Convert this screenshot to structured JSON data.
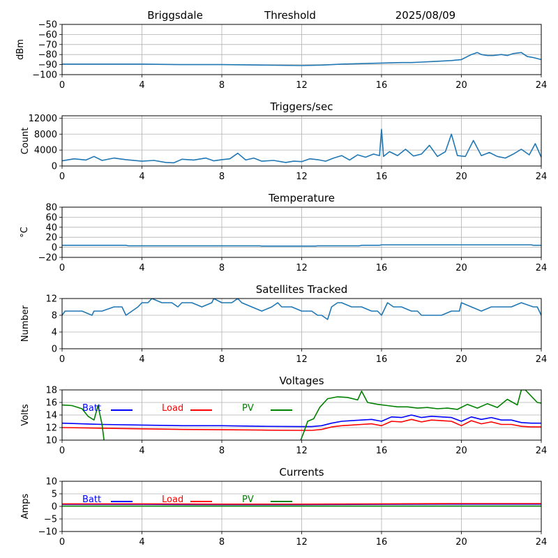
{
  "header": {
    "station": "Briggsdale",
    "label": "Threshold",
    "date": "2025/08/09"
  },
  "x_ticks": [
    0,
    4,
    8,
    12,
    16,
    20,
    24
  ],
  "chart_data": [
    {
      "id": "threshold",
      "type": "line",
      "title": "",
      "ylabel": "dBm",
      "ylim": [
        -100,
        -50
      ],
      "yticks": [
        -100,
        -90,
        -80,
        -70,
        -60,
        -50
      ],
      "xlim": [
        0,
        24
      ],
      "grid": true,
      "series": [
        {
          "color": "#1f77b4",
          "x": [
            0,
            2,
            4,
            6,
            8,
            10,
            12,
            13,
            14,
            15,
            16,
            17,
            17.5,
            18,
            18.5,
            19,
            19.5,
            20,
            20.5,
            20.8,
            21,
            21.3,
            21.6,
            22,
            22.3,
            22.6,
            23,
            23.3,
            23.6,
            24
          ],
          "y": [
            -89.5,
            -89.5,
            -89.5,
            -90,
            -90,
            -90.5,
            -91,
            -90.5,
            -89.5,
            -89,
            -88.5,
            -88,
            -88,
            -87.5,
            -87,
            -86.5,
            -86,
            -85,
            -80,
            -78,
            -80,
            -81,
            -81,
            -80,
            -81,
            -79,
            -78,
            -82,
            -83,
            -85
          ]
        }
      ]
    },
    {
      "id": "triggers",
      "type": "line",
      "title": "Triggers/sec",
      "ylabel": "Count",
      "ylim": [
        0,
        12600
      ],
      "yticks": [
        0,
        4000,
        8000,
        12000
      ],
      "xlim": [
        0,
        24
      ],
      "grid": true,
      "series": [
        {
          "color": "#1f77b4",
          "x": [
            0,
            0.6,
            1.2,
            1.6,
            2,
            2.6,
            3.2,
            4,
            4.6,
            5.2,
            5.6,
            6,
            6.6,
            7.2,
            7.6,
            8,
            8.4,
            8.8,
            9.2,
            9.6,
            10,
            10.6,
            11.2,
            11.6,
            12,
            12.4,
            12.8,
            13.2,
            13.6,
            14,
            14.4,
            14.8,
            15.2,
            15.6,
            15.9,
            16,
            16.1,
            16.4,
            16.8,
            17.2,
            17.6,
            18,
            18.4,
            18.8,
            19.2,
            19.5,
            19.8,
            20.2,
            20.6,
            21,
            21.4,
            21.8,
            22.2,
            22.6,
            23,
            23.4,
            23.7,
            24
          ],
          "y": [
            1300,
            1800,
            1500,
            2400,
            1400,
            2000,
            1600,
            1200,
            1400,
            900,
            800,
            1700,
            1500,
            2000,
            1300,
            1600,
            1800,
            3200,
            1500,
            2000,
            1200,
            1400,
            900,
            1200,
            1100,
            1800,
            1600,
            1200,
            2000,
            2600,
            1500,
            2800,
            2200,
            3000,
            2600,
            9200,
            2400,
            3600,
            2600,
            4200,
            2500,
            3000,
            5200,
            2400,
            3600,
            8000,
            2600,
            2400,
            6400,
            2600,
            3400,
            2400,
            2000,
            3000,
            4200,
            2800,
            5600,
            2200
          ]
        }
      ]
    },
    {
      "id": "temperature",
      "type": "line",
      "title": "Temperature",
      "ylabel": "°C",
      "ylim": [
        -20,
        80
      ],
      "yticks": [
        -20,
        0,
        20,
        40,
        60,
        80
      ],
      "xlim": [
        0,
        24
      ],
      "grid": true,
      "series": [
        {
          "color": "#1f77b4",
          "x": [
            0,
            3.2,
            3.3,
            9.9,
            10,
            12.7,
            12.8,
            14.9,
            15,
            15.9,
            16,
            23.5,
            23.6,
            24
          ],
          "y": [
            4,
            4,
            3,
            3,
            2.5,
            2.5,
            3,
            3,
            4,
            4,
            5,
            5,
            4,
            4
          ]
        }
      ]
    },
    {
      "id": "satellites",
      "type": "line",
      "title": "Satellites Tracked",
      "ylabel": "Number",
      "ylim": [
        0,
        12
      ],
      "yticks": [
        0,
        4,
        8,
        12
      ],
      "xlim": [
        0,
        24
      ],
      "grid": true,
      "series": [
        {
          "color": "#1f77b4",
          "x": [
            0,
            0.15,
            0.5,
            1.0,
            1.5,
            1.6,
            2.0,
            2.6,
            3.0,
            3.2,
            3.5,
            3.8,
            4.0,
            4.3,
            4.5,
            5.0,
            5.5,
            5.8,
            6.0,
            6.5,
            7.0,
            7.5,
            7.6,
            8.0,
            8.5,
            8.8,
            9.0,
            9.5,
            10.0,
            10.5,
            10.8,
            11.0,
            11.5,
            12.0,
            12.5,
            12.8,
            13.0,
            13.3,
            13.5,
            13.8,
            14.0,
            14.5,
            15.0,
            15.5,
            15.8,
            16.0,
            16.3,
            16.6,
            17.0,
            17.5,
            17.8,
            18.0,
            18.5,
            19.0,
            19.5,
            19.9,
            20.0,
            20.5,
            21.0,
            21.5,
            22.0,
            22.5,
            23.0,
            23.6,
            23.8,
            24
          ],
          "y": [
            8,
            9,
            9,
            9,
            8,
            9,
            9,
            10,
            10,
            8,
            9,
            10,
            11,
            11,
            12,
            11,
            11,
            10,
            11,
            11,
            10,
            11,
            12,
            11,
            11,
            12,
            11,
            10,
            9,
            10,
            11,
            10,
            10,
            9,
            9,
            8,
            8,
            7,
            10,
            11,
            11,
            10,
            10,
            9,
            9,
            8,
            11,
            10,
            10,
            9,
            9,
            8,
            8,
            8,
            9,
            9,
            11,
            10,
            9,
            10,
            10,
            10,
            11,
            10,
            10,
            8
          ]
        }
      ]
    },
    {
      "id": "voltages",
      "type": "line",
      "title": "Voltages",
      "ylabel": "Volts",
      "ylim": [
        10,
        18
      ],
      "yticks": [
        10,
        12,
        14,
        16,
        18
      ],
      "xlim": [
        0,
        24
      ],
      "grid": true,
      "legend": "top-left",
      "series": [
        {
          "name": "Batt",
          "color": "#0000ff",
          "x": [
            0,
            2,
            4,
            6,
            8,
            10,
            12,
            12.5,
            13,
            13.5,
            14,
            14.5,
            15,
            15.5,
            16,
            16.5,
            17,
            17.5,
            18,
            18.5,
            19,
            19.5,
            20,
            20.5,
            21,
            21.5,
            22,
            22.5,
            23,
            23.5,
            24
          ],
          "y": [
            12.7,
            12.5,
            12.4,
            12.3,
            12.3,
            12.2,
            12.15,
            12.15,
            12.3,
            12.7,
            13.0,
            13.1,
            13.2,
            13.3,
            13.0,
            13.7,
            13.6,
            14.0,
            13.6,
            13.8,
            13.7,
            13.6,
            13.0,
            13.7,
            13.3,
            13.6,
            13.2,
            13.2,
            12.8,
            12.7,
            12.7
          ]
        },
        {
          "name": "Load",
          "color": "#ff0000",
          "x": [
            0,
            2,
            4,
            6,
            8,
            10,
            12,
            12.5,
            13,
            13.5,
            14,
            14.5,
            15,
            15.5,
            16,
            16.5,
            17,
            17.5,
            18,
            18.5,
            19,
            19.5,
            20,
            20.5,
            21,
            21.5,
            22,
            22.5,
            23,
            23.5,
            24
          ],
          "y": [
            12.0,
            11.9,
            11.8,
            11.7,
            11.65,
            11.6,
            11.55,
            11.55,
            11.7,
            12.1,
            12.3,
            12.4,
            12.5,
            12.6,
            12.3,
            13.0,
            12.9,
            13.3,
            12.9,
            13.2,
            13.1,
            13.0,
            12.3,
            13.1,
            12.6,
            12.9,
            12.5,
            12.5,
            12.2,
            12.1,
            12.1
          ]
        },
        {
          "name": "PV",
          "color": "#008000",
          "x": [
            0,
            0.5,
            1.0,
            1.3,
            1.6,
            1.8,
            2.0,
            2.1,
            null,
            11.95,
            12.1,
            12.3,
            12.6,
            12.9,
            13.3,
            13.8,
            14.3,
            14.8,
            15.0,
            15.3,
            15.8,
            16.3,
            16.8,
            17.3,
            17.8,
            18.3,
            18.8,
            19.3,
            19.8,
            20.3,
            20.8,
            21.3,
            21.8,
            22.3,
            22.8,
            23.0,
            23.2,
            23.5,
            23.8,
            24
          ],
          "y": [
            15.6,
            15.5,
            15.0,
            13.8,
            13.2,
            15.5,
            12.5,
            10,
            null,
            10,
            11.2,
            13.0,
            13.4,
            15.2,
            16.6,
            16.9,
            16.8,
            16.4,
            17.8,
            16.0,
            15.7,
            15.5,
            15.3,
            15.3,
            15.1,
            15.2,
            15.0,
            15.1,
            14.9,
            15.7,
            15.1,
            15.8,
            15.2,
            16.5,
            15.6,
            18,
            18,
            17,
            16.0,
            15.9
          ]
        }
      ]
    },
    {
      "id": "currents",
      "type": "line",
      "title": "Currents",
      "ylabel": "Amps",
      "ylim": [
        -10,
        10
      ],
      "yticks": [
        -10,
        -5,
        0,
        5,
        10
      ],
      "xlim": [
        0,
        24
      ],
      "grid": true,
      "legend": "top-left",
      "series": [
        {
          "name": "Batt",
          "color": "#0000ff",
          "x": [
            0,
            4,
            8,
            12,
            16,
            20,
            24
          ],
          "y": [
            0.8,
            0.8,
            0.7,
            0.7,
            0.8,
            0.9,
            0.9
          ]
        },
        {
          "name": "Load",
          "color": "#ff0000",
          "x": [
            0,
            4,
            8,
            12,
            16,
            20,
            24
          ],
          "y": [
            1.0,
            1.0,
            0.9,
            0.9,
            1.0,
            1.1,
            1.1
          ]
        },
        {
          "name": "PV",
          "color": "#008000",
          "x": [
            0,
            4,
            8,
            12,
            16,
            20,
            24
          ],
          "y": [
            0.1,
            0.1,
            0.1,
            0.1,
            0.1,
            0.1,
            0.1
          ]
        }
      ]
    }
  ]
}
